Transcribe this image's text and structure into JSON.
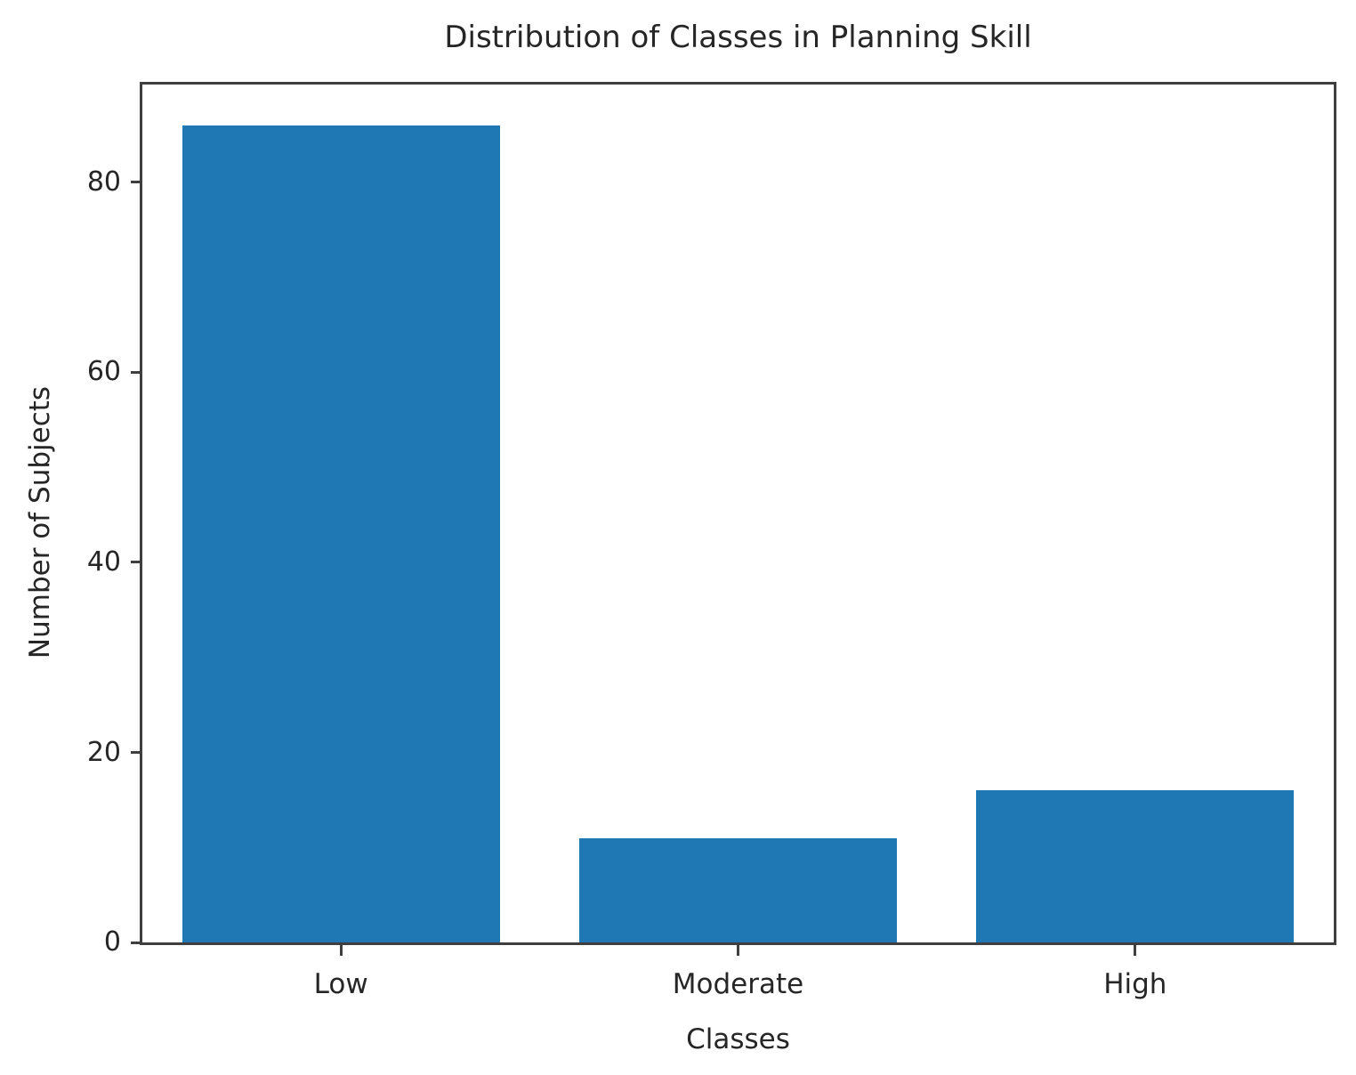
{
  "figure": {
    "background": "#ffffff"
  },
  "chart_data": {
    "type": "bar",
    "title": "Distribution of Classes in Planning Skill",
    "xlabel": "Classes",
    "ylabel": "Number of Subjects",
    "categories": [
      "Low",
      "Moderate",
      "High"
    ],
    "values": [
      86,
      11,
      16
    ],
    "yticks": [
      0,
      20,
      40,
      60,
      80
    ],
    "ylim": [
      0,
      90.3
    ],
    "bar_width_frac": 0.8,
    "bar_color": "#1f77b4",
    "axis_color": "#3f3f3f",
    "text_color": "#262626",
    "grid": false,
    "legend_position": "none"
  }
}
